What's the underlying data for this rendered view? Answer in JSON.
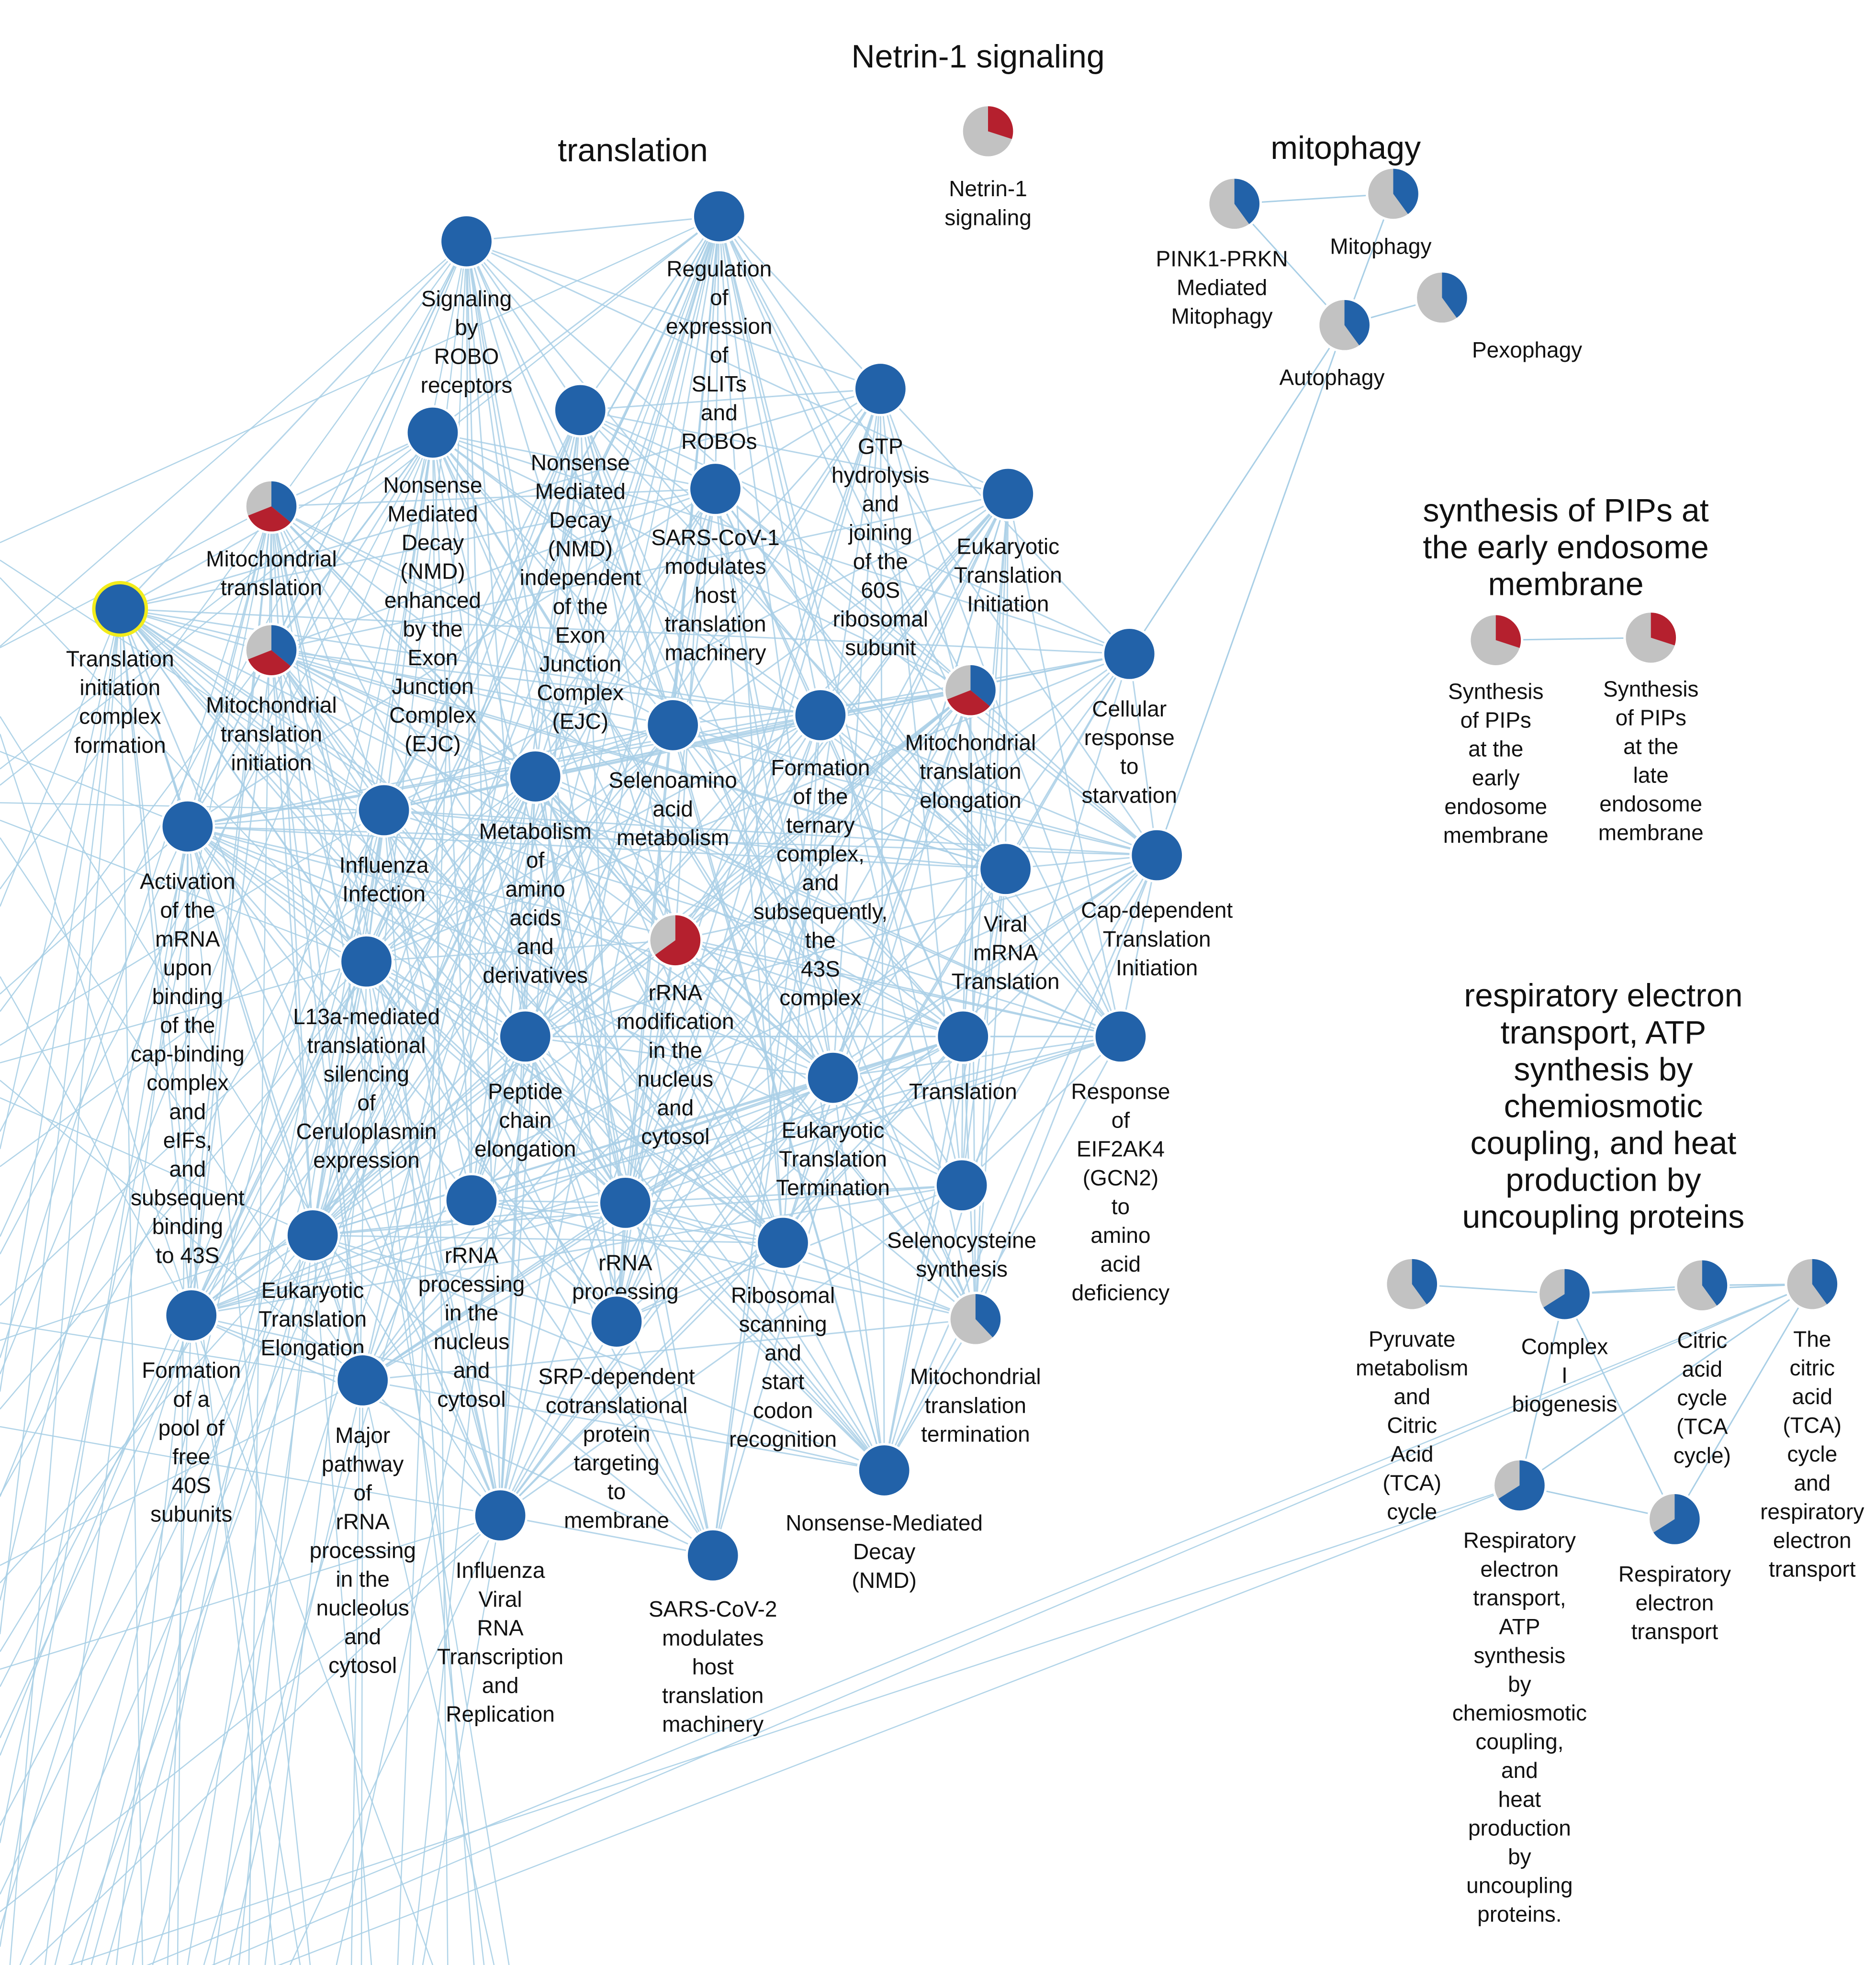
{
  "colors": {
    "blue": "#2262a9",
    "red": "#b5202e",
    "grey": "#c2c2c2",
    "edge": "#a9cfe6",
    "highlight": "#f2ec1a",
    "node_border": "#ffffff"
  },
  "cluster_titles": [
    {
      "id": "netrin",
      "lines": [
        "Netrin-1 signaling"
      ]
    },
    {
      "id": "translation",
      "lines": [
        "translation"
      ]
    },
    {
      "id": "mitophagy",
      "lines": [
        "mitophagy"
      ]
    },
    {
      "id": "pips",
      "lines": [
        "synthesis of PIPs at",
        "the early endosome",
        "membrane"
      ]
    },
    {
      "id": "resp",
      "lines": [
        "respiratory electron",
        "transport, ATP",
        "synthesis by",
        "chemiosmotic",
        "coupling, and heat",
        "production by",
        "uncoupling proteins"
      ]
    }
  ],
  "nodes": [
    {
      "id": "netrin1",
      "lines": [
        "Netrin-1",
        "signaling"
      ],
      "fill": "pie",
      "blue": 0,
      "red": 0.3
    },
    {
      "id": "robo",
      "lines": [
        "Signaling",
        "by",
        "ROBO",
        "receptors"
      ],
      "fill": "blue"
    },
    {
      "id": "slits",
      "lines": [
        "Regulation",
        "of",
        "expression",
        "of",
        "SLITs",
        "and",
        "ROBOs"
      ],
      "fill": "blue"
    },
    {
      "id": "nmd_ejc",
      "lines": [
        "Nonsense",
        "Mediated",
        "Decay",
        "(NMD)",
        "enhanced",
        "by the",
        "Exon",
        "Junction",
        "Complex",
        "(EJC)"
      ],
      "fill": "blue"
    },
    {
      "id": "nmd_indep",
      "lines": [
        "Nonsense",
        "Mediated",
        "Decay",
        "(NMD)",
        "independent",
        "of the",
        "Exon",
        "Junction",
        "Complex",
        "(EJC)"
      ],
      "fill": "blue"
    },
    {
      "id": "gtp",
      "lines": [
        "GTP",
        "hydrolysis",
        "and",
        "joining",
        "of the",
        "60S",
        "ribosomal",
        "subunit"
      ],
      "fill": "blue"
    },
    {
      "id": "mito_trans",
      "lines": [
        "Mitochondrial",
        "translation"
      ],
      "fill": "pie",
      "blue": 0.36,
      "red": 0.33
    },
    {
      "id": "sars1",
      "lines": [
        "SARS-CoV-1",
        "modulates",
        "host",
        "translation",
        "machinery"
      ],
      "fill": "blue"
    },
    {
      "id": "eti",
      "lines": [
        "Eukaryotic",
        "Translation",
        "Initiation"
      ],
      "fill": "blue"
    },
    {
      "id": "tic",
      "lines": [
        "Translation",
        "initiation",
        "complex",
        "formation"
      ],
      "fill": "blue"
    },
    {
      "id": "mito_init",
      "lines": [
        "Mitochondrial",
        "translation",
        "initiation"
      ],
      "fill": "pie",
      "blue": 0.36,
      "red": 0.33
    },
    {
      "id": "starv",
      "lines": [
        "Cellular",
        "response",
        "to",
        "starvation"
      ],
      "fill": "blue"
    },
    {
      "id": "mito_elong",
      "lines": [
        "Mitochondrial",
        "translation",
        "elongation"
      ],
      "fill": "pie",
      "blue": 0.36,
      "red": 0.33
    },
    {
      "id": "seleno_aa",
      "lines": [
        "Selenoamino",
        "acid",
        "metabolism"
      ],
      "fill": "blue"
    },
    {
      "id": "ternary",
      "lines": [
        "Formation",
        "of the",
        "ternary",
        "complex,",
        "and",
        "subsequently,",
        "the",
        "43S",
        "complex"
      ],
      "fill": "blue"
    },
    {
      "id": "metab_aa",
      "lines": [
        "Metabolism",
        "of",
        "amino",
        "acids",
        "and",
        "derivatives"
      ],
      "fill": "blue"
    },
    {
      "id": "influenza",
      "lines": [
        "Influenza",
        "Infection"
      ],
      "fill": "blue"
    },
    {
      "id": "activation",
      "lines": [
        "Activation",
        "of the",
        "mRNA",
        "upon",
        "binding",
        "of the",
        "cap-binding",
        "complex",
        "and",
        "eIFs,",
        "and",
        "subsequent",
        "binding",
        "to 43S"
      ],
      "fill": "blue"
    },
    {
      "id": "capdep",
      "lines": [
        "Cap-dependent",
        "Translation",
        "Initiation"
      ],
      "fill": "blue"
    },
    {
      "id": "viral_mrna",
      "lines": [
        "Viral",
        "mRNA",
        "Translation"
      ],
      "fill": "blue"
    },
    {
      "id": "rrna_mod",
      "lines": [
        "rRNA",
        "modification",
        "in the",
        "nucleus",
        "and",
        "cytosol"
      ],
      "fill": "pie",
      "blue": 0,
      "red": 0.65
    },
    {
      "id": "l13a",
      "lines": [
        "L13a-mediated",
        "translational",
        "silencing",
        "of",
        "Ceruloplasmin",
        "expression"
      ],
      "fill": "blue"
    },
    {
      "id": "peptide",
      "lines": [
        "Peptide",
        "chain",
        "elongation"
      ],
      "fill": "blue"
    },
    {
      "id": "translation",
      "lines": [
        "Translation"
      ],
      "fill": "blue"
    },
    {
      "id": "eif2ak4",
      "lines": [
        "Response",
        "of",
        "EIF2AK4",
        "(GCN2)",
        "to",
        "amino",
        "acid",
        "deficiency"
      ],
      "fill": "blue"
    },
    {
      "id": "ett",
      "lines": [
        "Eukaryotic",
        "Translation",
        "Termination"
      ],
      "fill": "blue"
    },
    {
      "id": "selenocys",
      "lines": [
        "Selenocysteine",
        "synthesis"
      ],
      "fill": "blue"
    },
    {
      "id": "rrna_nuc",
      "lines": [
        "rRNA",
        "processing",
        "in the",
        "nucleus",
        "and",
        "cytosol"
      ],
      "fill": "blue"
    },
    {
      "id": "rrna_proc",
      "lines": [
        "rRNA",
        "processing"
      ],
      "fill": "blue"
    },
    {
      "id": "ete",
      "lines": [
        "Eukaryotic",
        "Translation",
        "Elongation"
      ],
      "fill": "blue"
    },
    {
      "id": "ribscan",
      "lines": [
        "Ribosomal",
        "scanning",
        "and",
        "start",
        "codon",
        "recognition"
      ],
      "fill": "blue"
    },
    {
      "id": "mito_term",
      "lines": [
        "Mitochondrial",
        "translation",
        "termination"
      ],
      "fill": "pie",
      "blue": 0.38,
      "red": 0
    },
    {
      "id": "pool40s",
      "lines": [
        "Formation",
        "of a",
        "pool of",
        "free",
        "40S",
        "subunits"
      ],
      "fill": "blue"
    },
    {
      "id": "srp",
      "lines": [
        "SRP-dependent",
        "cotranslational",
        "protein",
        "targeting",
        "to",
        "membrane"
      ],
      "fill": "blue"
    },
    {
      "id": "major_rrna",
      "lines": [
        "Major",
        "pathway",
        "of",
        "rRNA",
        "processing",
        "in the",
        "nucleolus",
        "and",
        "cytosol"
      ],
      "fill": "blue"
    },
    {
      "id": "nmd",
      "lines": [
        "Nonsense-Mediated",
        "Decay",
        "(NMD)"
      ],
      "fill": "blue"
    },
    {
      "id": "flu_rna",
      "lines": [
        "Influenza",
        "Viral",
        "RNA",
        "Transcription",
        "and",
        "Replication"
      ],
      "fill": "blue"
    },
    {
      "id": "sars2",
      "lines": [
        "SARS-CoV-2",
        "modulates",
        "host",
        "translation",
        "machinery"
      ],
      "fill": "blue"
    },
    {
      "id": "pink1",
      "lines": [
        "PINK1-PRKN",
        "Mediated",
        "Mitophagy"
      ],
      "fill": "pie",
      "blue": 0.4,
      "red": 0
    },
    {
      "id": "mitophagy",
      "lines": [
        "Mitophagy"
      ],
      "fill": "pie",
      "blue": 0.4,
      "red": 0
    },
    {
      "id": "pexophagy",
      "lines": [
        "Pexophagy"
      ],
      "fill": "pie",
      "blue": 0.4,
      "red": 0
    },
    {
      "id": "autophagy",
      "lines": [
        "Autophagy"
      ],
      "fill": "pie",
      "blue": 0.4,
      "red": 0
    },
    {
      "id": "pip_early",
      "lines": [
        "Synthesis",
        "of PIPs",
        "at the",
        "early",
        "endosome",
        "membrane"
      ],
      "fill": "pie",
      "blue": 0,
      "red": 0.3
    },
    {
      "id": "pip_late",
      "lines": [
        "Synthesis",
        "of PIPs",
        "at the",
        "late",
        "endosome",
        "membrane"
      ],
      "fill": "pie",
      "blue": 0,
      "red": 0.3
    },
    {
      "id": "pyruvate",
      "lines": [
        "Pyruvate",
        "metabolism",
        "and",
        "Citric",
        "Acid",
        "(TCA)",
        "cycle"
      ],
      "fill": "pie",
      "blue": 0.4,
      "red": 0
    },
    {
      "id": "complex1",
      "lines": [
        "Complex",
        "I",
        "biogenesis"
      ],
      "fill": "pie",
      "blue": 0.66,
      "red": 0
    },
    {
      "id": "citric",
      "lines": [
        "Citric",
        "acid",
        "cycle",
        "(TCA",
        "cycle)"
      ],
      "fill": "pie",
      "blue": 0.4,
      "red": 0
    },
    {
      "id": "tca_resp",
      "lines": [
        "The",
        "citric",
        "acid",
        "(TCA)",
        "cycle",
        "and",
        "respiratory",
        "electron",
        "transport"
      ],
      "fill": "pie",
      "blue": 0.4,
      "red": 0
    },
    {
      "id": "resp_atp",
      "lines": [
        "Respiratory",
        "electron",
        "transport,",
        "ATP",
        "synthesis",
        "by",
        "chemiosmotic",
        "coupling,",
        "and",
        "heat",
        "production",
        "by",
        "uncoupling",
        "proteins."
      ],
      "fill": "pie",
      "blue": 0.66,
      "red": 0
    },
    {
      "id": "resp_et",
      "lines": [
        "Respiratory",
        "electron",
        "transport"
      ],
      "fill": "pie",
      "blue": 0.66,
      "red": 0
    }
  ],
  "edges_local": [
    [
      "pink1",
      "mitophagy"
    ],
    [
      "pink1",
      "autophagy"
    ],
    [
      "mitophagy",
      "autophagy"
    ],
    [
      "pexophagy",
      "autophagy"
    ],
    [
      "pip_early",
      "pip_late"
    ],
    [
      "pyruvate",
      "complex1"
    ],
    [
      "complex1",
      "citric"
    ],
    [
      "citric",
      "tca_resp"
    ],
    [
      "complex1",
      "tca_resp"
    ],
    [
      "complex1",
      "resp_et"
    ],
    [
      "tca_resp",
      "resp_et"
    ],
    [
      "tca_resp",
      "resp_atp"
    ],
    [
      "resp_atp",
      "resp_et"
    ],
    [
      "complex1",
      "resp_atp"
    ],
    [
      "autophagy",
      "starv"
    ],
    [
      "autophagy",
      "capdep"
    ]
  ]
}
